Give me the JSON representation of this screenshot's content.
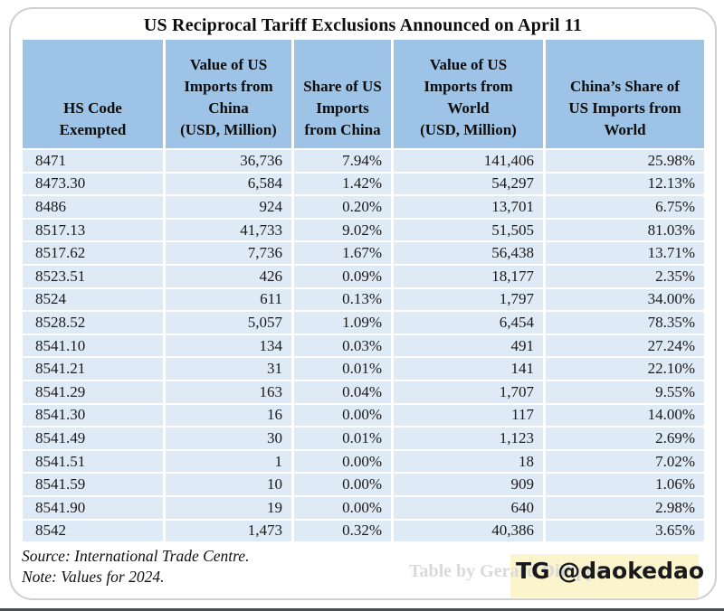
{
  "chart_data": {
    "type": "table",
    "title": "US Reciprocal Tariff Exclusions Announced on April 11",
    "columns": [
      "HS Code\nExempted",
      "Value of US\nImports from\nChina\n(USD, Million)",
      "Share of US\nImports\nfrom China",
      "Value of US\nImports from\nWorld\n(USD, Million)",
      "China’s Share of\nUS Imports from\nWorld"
    ],
    "rows": [
      [
        "8471",
        "36,736",
        "7.94%",
        "141,406",
        "25.98%"
      ],
      [
        "8473.30",
        "6,584",
        "1.42%",
        "54,297",
        "12.13%"
      ],
      [
        "8486",
        "924",
        "0.20%",
        "13,701",
        "6.75%"
      ],
      [
        "8517.13",
        "41,733",
        "9.02%",
        "51,505",
        "81.03%"
      ],
      [
        "8517.62",
        "7,736",
        "1.67%",
        "56,438",
        "13.71%"
      ],
      [
        "8523.51",
        "426",
        "0.09%",
        "18,177",
        "2.35%"
      ],
      [
        "8524",
        "611",
        "0.13%",
        "1,797",
        "34.00%"
      ],
      [
        "8528.52",
        "5,057",
        "1.09%",
        "6,454",
        "78.35%"
      ],
      [
        "8541.10",
        "134",
        "0.03%",
        "491",
        "27.24%"
      ],
      [
        "8541.21",
        "31",
        "0.01%",
        "141",
        "22.10%"
      ],
      [
        "8541.29",
        "163",
        "0.04%",
        "1,707",
        "9.55%"
      ],
      [
        "8541.30",
        "16",
        "0.00%",
        "117",
        "14.00%"
      ],
      [
        "8541.49",
        "30",
        "0.01%",
        "1,123",
        "2.69%"
      ],
      [
        "8541.51",
        "1",
        "0.00%",
        "18",
        "7.02%"
      ],
      [
        "8541.59",
        "10",
        "0.00%",
        "909",
        "1.06%"
      ],
      [
        "8541.90",
        "19",
        "0.00%",
        "640",
        "2.98%"
      ],
      [
        "8542",
        "1,473",
        "0.32%",
        "40,386",
        "3.65%"
      ]
    ],
    "layout": {
      "grid": "white 2-3px separators",
      "header_align": "bottom-center",
      "numbers_align": "right"
    }
  },
  "footer": {
    "source": "Source: International Trade Centre.",
    "note": "Note: Values for 2024.",
    "watermark": "Table by Gerard DiPippo",
    "badge": "TG @daokedao"
  },
  "colors": {
    "header_bg": "#9DC3E6",
    "row_bg": "#DEEAF6",
    "grid_lines": "#FFFFFF",
    "badge_bg": "#FBF4CD",
    "watermark_text": "#D9D9D9",
    "card_border": "#CFCFCF",
    "bottom_rule": "#4B4D52",
    "text": "#111111"
  }
}
